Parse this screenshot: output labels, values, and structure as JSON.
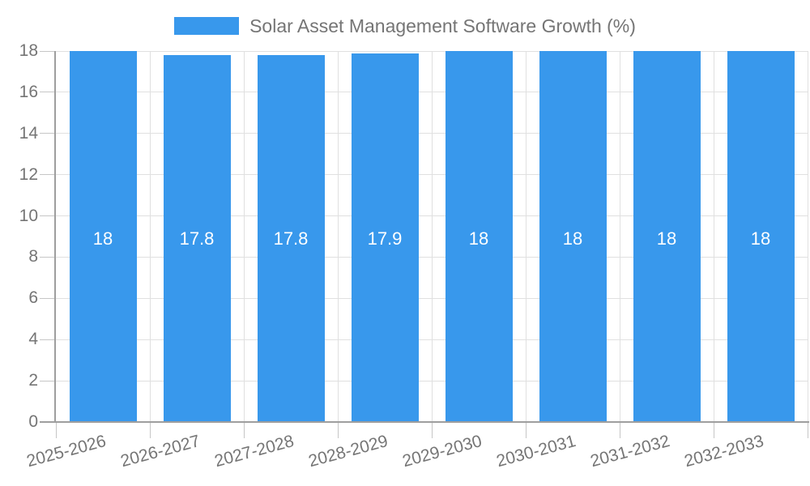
{
  "chart_data": {
    "type": "bar",
    "title": "Solar Asset Management Software Growth (%)",
    "categories": [
      "2025-2026",
      "2026-2027",
      "2027-2028",
      "2028-2029",
      "2029-2030",
      "2030-2031",
      "2031-2032",
      "2032-2033"
    ],
    "values": [
      18,
      17.8,
      17.8,
      17.9,
      18,
      18,
      18,
      18
    ],
    "bar_labels": [
      "18",
      "17.8",
      "17.8",
      "17.9",
      "18",
      "18",
      "18",
      "18"
    ],
    "xlabel": "",
    "ylabel": "",
    "ylim": [
      0,
      18
    ],
    "yticks": [
      0,
      2,
      4,
      6,
      8,
      10,
      12,
      14,
      16,
      18
    ],
    "legend_position": "top",
    "grid": true,
    "colors": {
      "bar": "#3898EC",
      "grid": "#E0E0E0",
      "axis": "#9E9E9E",
      "tick": "#C6C6C6",
      "text": "#757575",
      "bar_label": "#FFFFFF",
      "background": "#FFFFFF"
    }
  }
}
